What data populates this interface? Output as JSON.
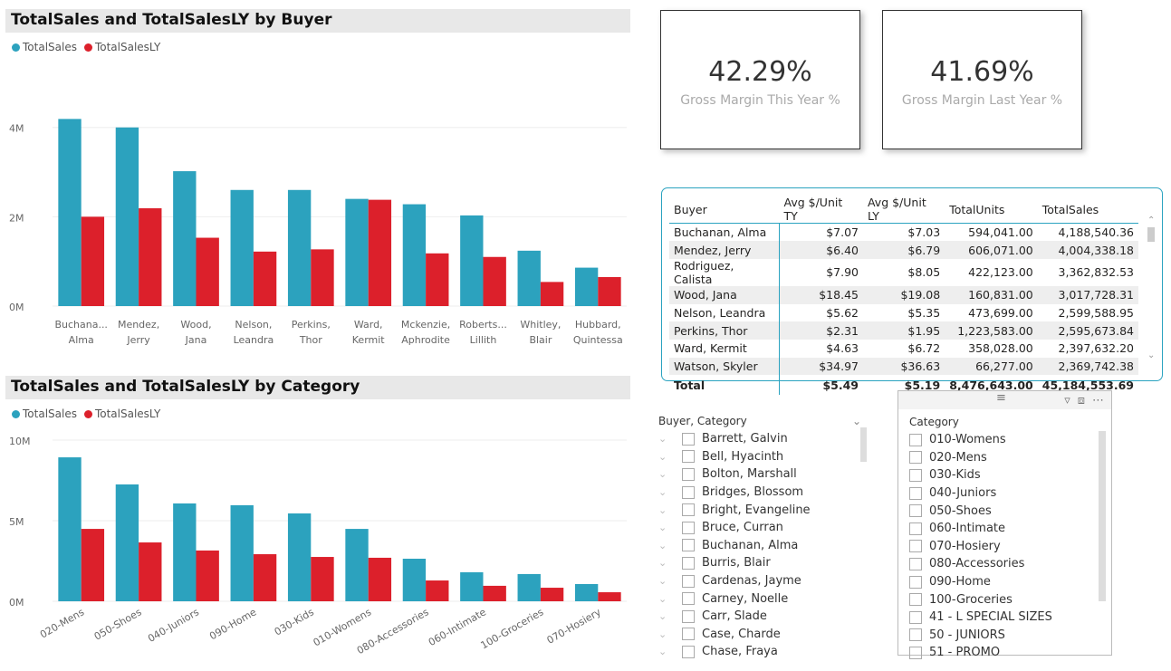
{
  "colors": {
    "ts": "#2ca2be",
    "ly": "#dc202b"
  },
  "chart_data": [
    {
      "type": "bar",
      "title": "TotalSales and TotalSalesLY by Buyer",
      "legend": [
        "TotalSales",
        "TotalSalesLY"
      ],
      "legend_position": "top-left",
      "categories": [
        [
          "Buchana...",
          "Alma"
        ],
        [
          "Mendez,",
          "Jerry"
        ],
        [
          "Wood,",
          "Jana"
        ],
        [
          "Nelson,",
          "Leandra"
        ],
        [
          "Perkins,",
          "Thor"
        ],
        [
          "Ward,",
          "Kermit"
        ],
        [
          "Mckenzie,",
          "Aphrodite"
        ],
        [
          "Roberts...",
          "Lillith"
        ],
        [
          "Whitley,",
          "Blair"
        ],
        [
          "Hubbard,",
          "Quintessa"
        ]
      ],
      "series": [
        {
          "name": "TotalSales",
          "values": [
            4.19,
            4.0,
            3.02,
            2.6,
            2.6,
            2.4,
            2.28,
            2.03,
            1.24,
            0.86
          ]
        },
        {
          "name": "TotalSalesLY",
          "values": [
            2.0,
            2.19,
            1.53,
            1.22,
            1.27,
            2.38,
            1.18,
            1.1,
            0.54,
            0.65
          ]
        }
      ],
      "yticks": [
        "0M",
        "2M",
        "4M"
      ],
      "ytick_values": [
        0,
        2,
        4
      ],
      "ylim": [
        0,
        4.4
      ],
      "unit": "M"
    },
    {
      "type": "bar",
      "title": "TotalSales and TotalSalesLY by Category",
      "legend": [
        "TotalSales",
        "TotalSalesLY"
      ],
      "legend_position": "top-left",
      "categories": [
        "020-Mens",
        "050-Shoes",
        "040-Juniors",
        "090-Home",
        "030-Kids",
        "010-Womens",
        "080-Accessories",
        "060-Intimate",
        "100-Groceries",
        "070-Hosiery"
      ],
      "series": [
        {
          "name": "TotalSales",
          "values": [
            8.93,
            7.25,
            6.07,
            5.96,
            5.45,
            4.49,
            2.64,
            1.8,
            1.69,
            1.07
          ]
        },
        {
          "name": "TotalSalesLY",
          "values": [
            4.49,
            3.65,
            3.15,
            2.92,
            2.75,
            2.7,
            1.29,
            0.96,
            0.84,
            0.56
          ]
        }
      ],
      "yticks": [
        "0M",
        "5M",
        "10M"
      ],
      "ytick_values": [
        0,
        5,
        10
      ],
      "ylim": [
        0,
        10
      ],
      "unit": "M"
    }
  ],
  "cards": [
    {
      "value": "42.29%",
      "label": "Gross Margin This Year %"
    },
    {
      "value": "41.69%",
      "label": "Gross Margin Last Year %"
    }
  ],
  "table": {
    "headers": [
      "Buyer",
      "Avg $/Unit TY",
      "Avg $/Unit LY",
      "TotalUnits",
      "TotalSales"
    ],
    "rows": [
      [
        "Buchanan, Alma",
        "$7.07",
        "$7.03",
        "594,041.00",
        "4,188,540.36"
      ],
      [
        "Mendez, Jerry",
        "$6.40",
        "$6.79",
        "606,071.00",
        "4,004,338.18"
      ],
      [
        "Rodriguez, Calista",
        "$7.90",
        "$8.05",
        "422,123.00",
        "3,362,832.53"
      ],
      [
        "Wood, Jana",
        "$18.45",
        "$19.08",
        "160,831.00",
        "3,017,728.31"
      ],
      [
        "Nelson, Leandra",
        "$5.62",
        "$5.35",
        "473,699.00",
        "2,599,588.95"
      ],
      [
        "Perkins, Thor",
        "$2.31",
        "$1.95",
        "1,223,583.00",
        "2,595,673.84"
      ],
      [
        "Ward, Kermit",
        "$4.63",
        "$6.72",
        "358,028.00",
        "2,397,632.20"
      ],
      [
        "Watson, Skyler",
        "$34.97",
        "$36.63",
        "66,277.00",
        "2,369,742.38"
      ]
    ],
    "total": [
      "Total",
      "$5.49",
      "$5.19",
      "8,476,643.00",
      "45,184,553.69"
    ]
  },
  "slicer1": {
    "title": "Buyer, Category",
    "items": [
      "Barrett, Galvin",
      "Bell, Hyacinth",
      "Bolton, Marshall",
      "Bridges, Blossom",
      "Bright, Evangeline",
      "Bruce, Curran",
      "Buchanan, Alma",
      "Burris, Blair",
      "Cardenas, Jayme",
      "Carney, Noelle",
      "Carr, Slade",
      "Case, Charde",
      "Chase, Fraya"
    ]
  },
  "slicer2": {
    "title": "Category",
    "items": [
      "010-Womens",
      "020-Mens",
      "030-Kids",
      "040-Juniors",
      "050-Shoes",
      "060-Intimate",
      "070-Hosiery",
      "080-Accessories",
      "090-Home",
      "100-Groceries",
      "41 - L SPECIAL SIZES",
      "50 - JUNIORS",
      "51 - PROMO"
    ]
  }
}
